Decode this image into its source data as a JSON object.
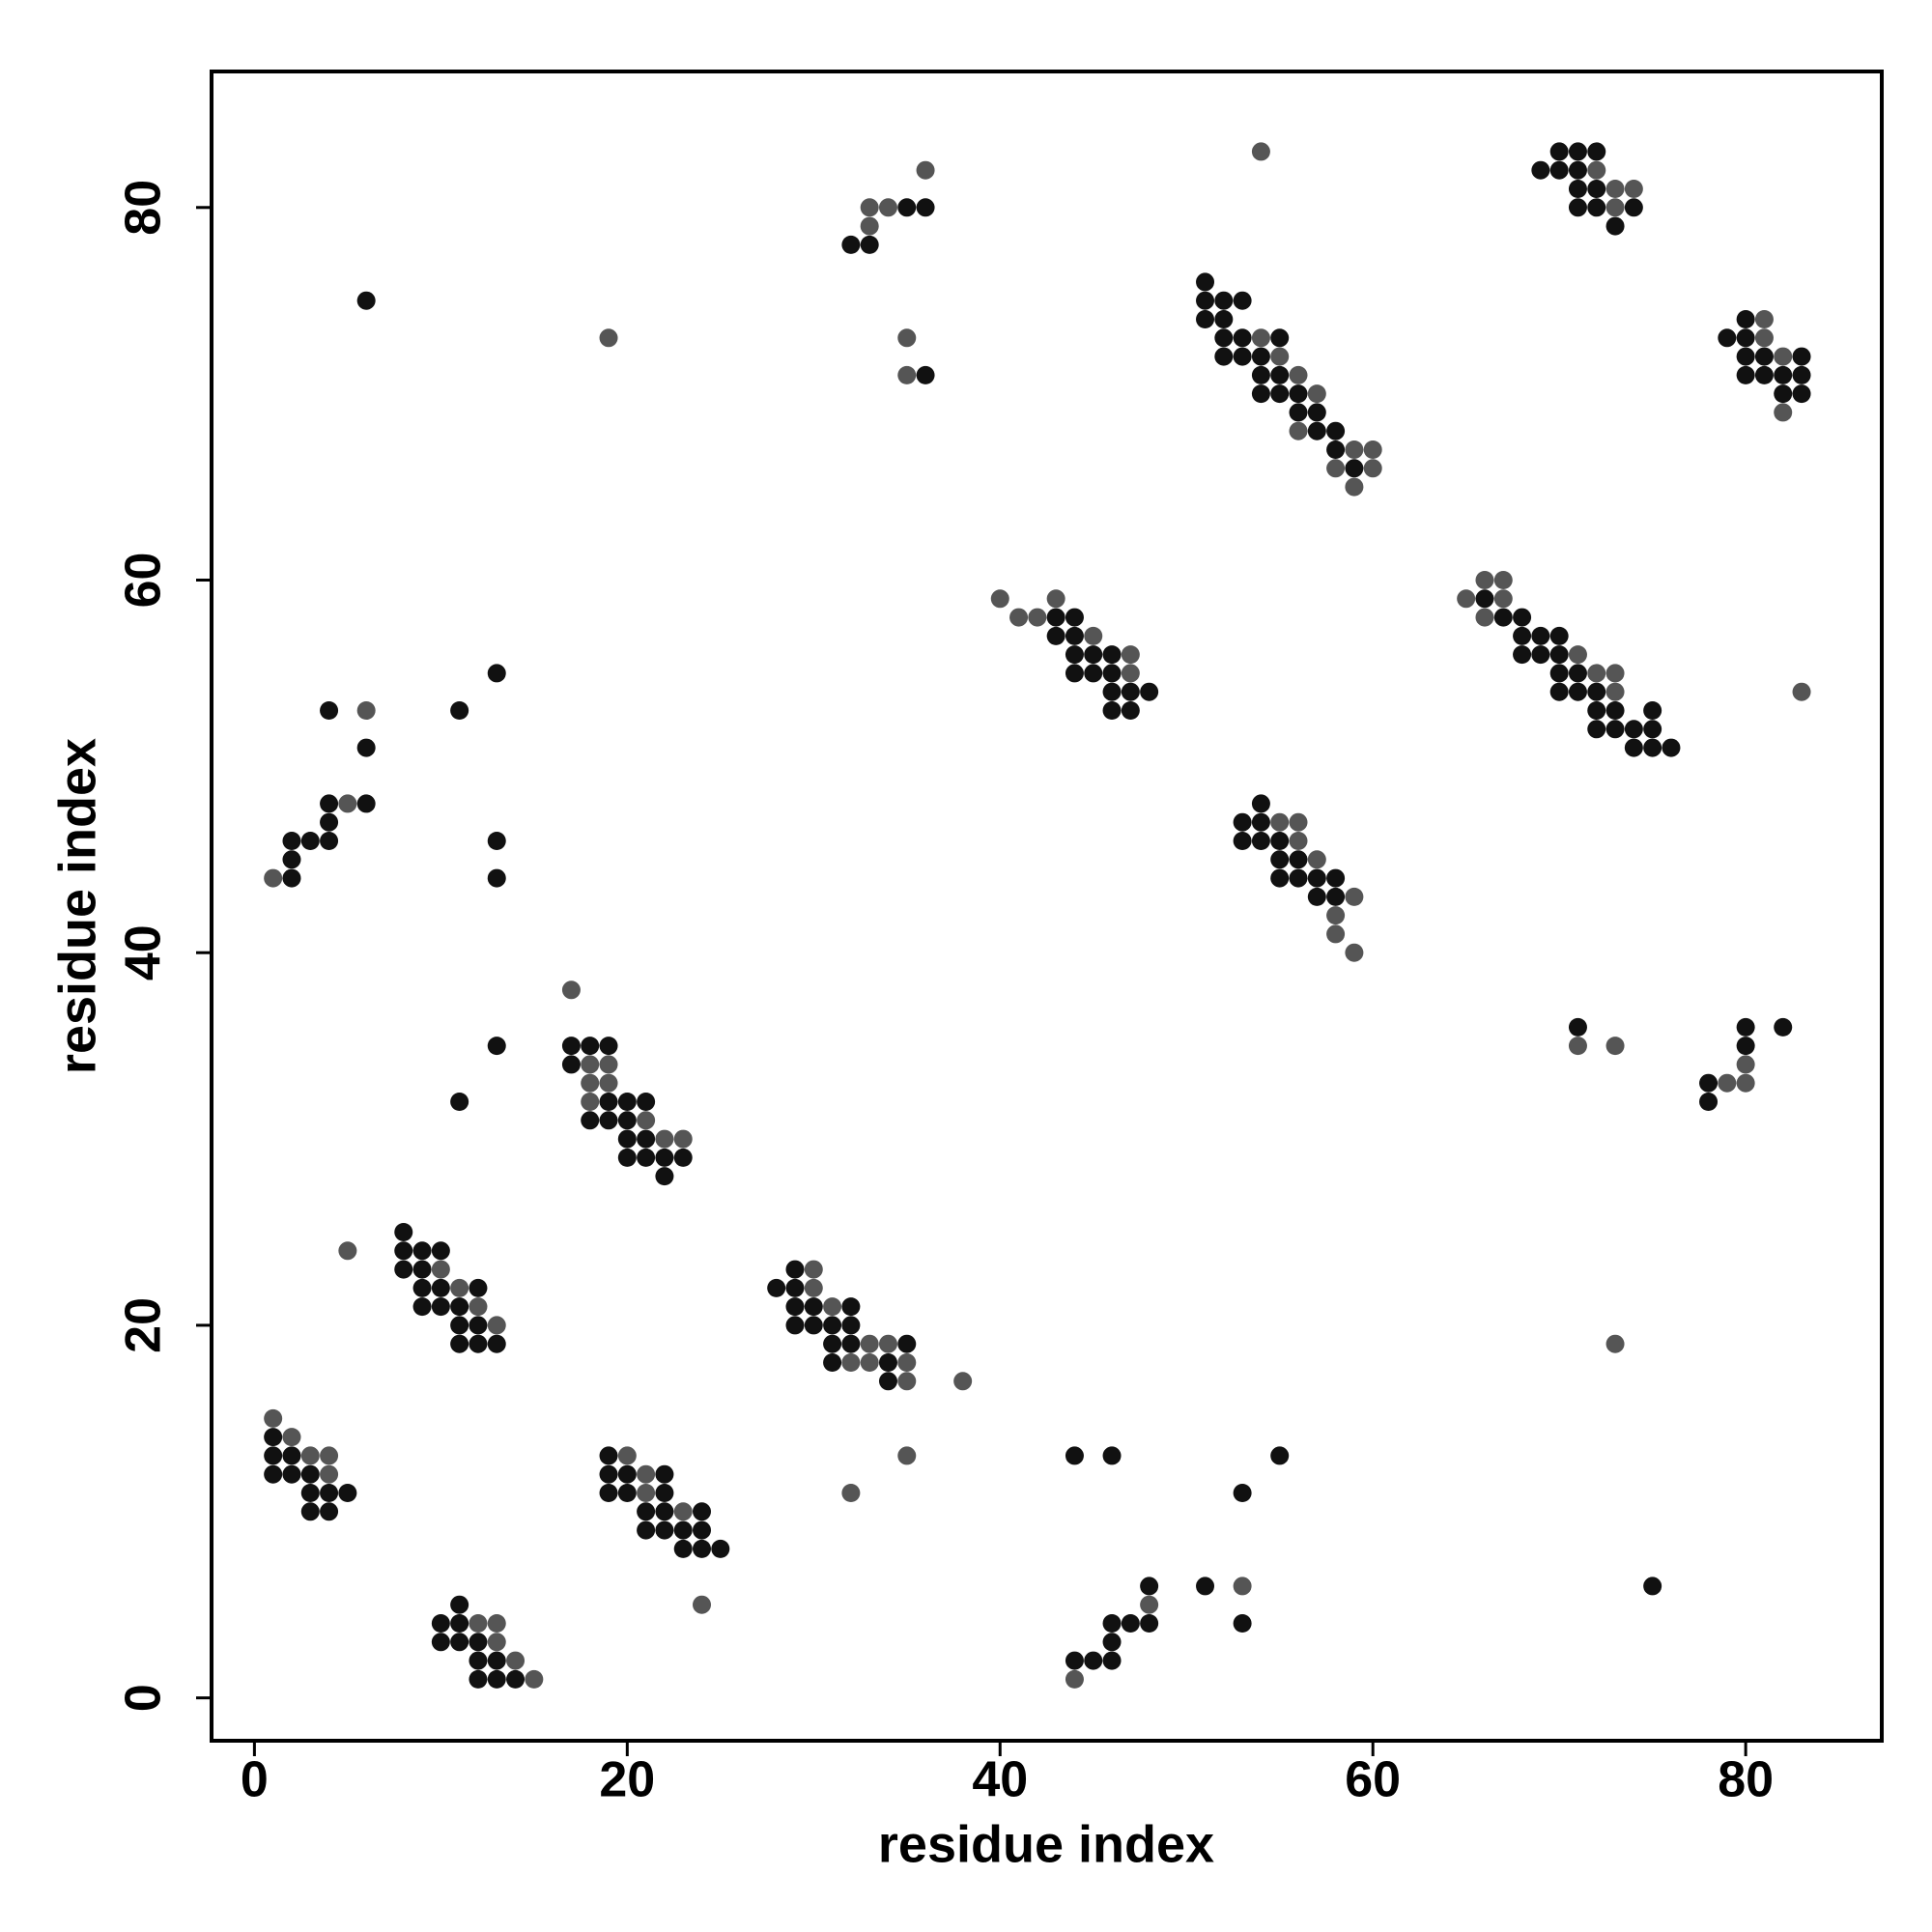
{
  "chart_data": {
    "type": "scatter",
    "x_label": "residue index",
    "y_label": "residue index",
    "xlim": [
      -2.3,
      87.3
    ],
    "ylim": [
      -2.3,
      87.3
    ],
    "xticks": [
      0,
      20,
      40,
      60,
      80
    ],
    "yticks": [
      0,
      20,
      40,
      60,
      80
    ],
    "grid": false,
    "series": [
      {
        "color": "#111111",
        "x": [
          1,
          1,
          2,
          1,
          2,
          3,
          3,
          4,
          5,
          3,
          4,
          8,
          8,
          9,
          10,
          8,
          9,
          9,
          10,
          12,
          9,
          10,
          11,
          11,
          12,
          11,
          12,
          13,
          11,
          10,
          11,
          10,
          11,
          12,
          12,
          13,
          12,
          13,
          14,
          19,
          19,
          20,
          22,
          19,
          20,
          22,
          21,
          22,
          24,
          21,
          22,
          23,
          24,
          23,
          24,
          25,
          17,
          18,
          19,
          17,
          19,
          20,
          21,
          18,
          19,
          20,
          20,
          21,
          20,
          21,
          22,
          23,
          22,
          11,
          13,
          13,
          13,
          13,
          11,
          2,
          2,
          2,
          3,
          4,
          4,
          4,
          6,
          6,
          4,
          6,
          29,
          28,
          29,
          29,
          30,
          32,
          29,
          30,
          31,
          32,
          31,
          32,
          35,
          31,
          34,
          34,
          32,
          33,
          35,
          36,
          36,
          43,
          44,
          43,
          44,
          44,
          45,
          46,
          44,
          45,
          46,
          46,
          47,
          48,
          46,
          47,
          44,
          45,
          46,
          46,
          46,
          47,
          48,
          48,
          44,
          46,
          51,
          53,
          53,
          55,
          51,
          51,
          52,
          53,
          51,
          52,
          52,
          53,
          55,
          52,
          53,
          54,
          54,
          55,
          54,
          55,
          56,
          56,
          57,
          57,
          58,
          58,
          59,
          54,
          53,
          54,
          53,
          54,
          55,
          55,
          56,
          55,
          56,
          57,
          58,
          57,
          58,
          66,
          67,
          68,
          68,
          69,
          70,
          68,
          69,
          70,
          70,
          71,
          70,
          71,
          72,
          72,
          73,
          75,
          72,
          73,
          74,
          75,
          74,
          75,
          76,
          70,
          71,
          72,
          69,
          70,
          71,
          71,
          72,
          71,
          72,
          74,
          73,
          79,
          80,
          80,
          80,
          81,
          83,
          80,
          81,
          82,
          83,
          82,
          83,
          71,
          75,
          78,
          78,
          80,
          80,
          82
        ],
        "y": [
          14,
          13,
          13,
          12,
          12,
          12,
          11,
          11,
          11,
          10,
          10,
          25,
          24,
          24,
          24,
          23,
          23,
          22,
          22,
          22,
          21,
          21,
          21,
          20,
          20,
          19,
          19,
          19,
          5,
          4,
          4,
          3,
          3,
          3,
          2,
          2,
          1,
          1,
          1,
          13,
          12,
          12,
          12,
          11,
          11,
          11,
          10,
          10,
          10,
          9,
          9,
          9,
          9,
          8,
          8,
          8,
          35,
          35,
          35,
          34,
          32,
          32,
          32,
          31,
          31,
          31,
          30,
          30,
          29,
          29,
          29,
          29,
          28,
          32,
          35,
          46,
          44,
          55,
          53,
          44,
          45,
          46,
          46,
          46,
          47,
          48,
          48,
          51,
          53,
          75,
          23,
          22,
          22,
          21,
          21,
          21,
          20,
          20,
          20,
          20,
          19,
          19,
          19,
          18,
          18,
          17,
          78,
          78,
          80,
          80,
          71,
          58,
          58,
          57,
          57,
          56,
          56,
          56,
          55,
          55,
          55,
          54,
          54,
          54,
          53,
          53,
          2,
          2,
          2,
          3,
          4,
          4,
          4,
          6,
          13,
          13,
          6,
          4,
          11,
          13,
          76,
          75,
          75,
          75,
          74,
          74,
          73,
          73,
          73,
          72,
          72,
          72,
          71,
          71,
          70,
          70,
          70,
          69,
          69,
          68,
          68,
          67,
          66,
          48,
          47,
          47,
          46,
          46,
          46,
          45,
          45,
          44,
          44,
          44,
          44,
          43,
          43,
          59,
          58,
          58,
          57,
          57,
          57,
          56,
          56,
          56,
          55,
          55,
          54,
          54,
          54,
          53,
          53,
          53,
          52,
          52,
          52,
          52,
          51,
          51,
          51,
          83,
          83,
          83,
          82,
          82,
          82,
          81,
          81,
          80,
          80,
          80,
          79,
          73,
          74,
          73,
          72,
          72,
          72,
          71,
          71,
          71,
          71,
          70,
          70,
          36,
          6,
          33,
          32,
          35,
          36,
          36
        ]
      },
      {
        "color": "#555555",
        "x": [
          1,
          2,
          3,
          4,
          4,
          5,
          10,
          11,
          12,
          13,
          12,
          13,
          13,
          14,
          15,
          20,
          21,
          21,
          23,
          24,
          17,
          18,
          19,
          18,
          19,
          18,
          21,
          22,
          23,
          1,
          5,
          6,
          19,
          30,
          30,
          31,
          33,
          34,
          32,
          33,
          35,
          35,
          38,
          35,
          32,
          33,
          33,
          34,
          36,
          35,
          35,
          40,
          41,
          42,
          43,
          45,
          47,
          47,
          44,
          48,
          53,
          54,
          55,
          56,
          57,
          56,
          59,
          60,
          58,
          60,
          59,
          54,
          55,
          56,
          56,
          57,
          59,
          58,
          58,
          59,
          65,
          67,
          66,
          67,
          66,
          71,
          72,
          73,
          73,
          83,
          72,
          73,
          74,
          73,
          81,
          81,
          82,
          82,
          71,
          73,
          73,
          79,
          80,
          80
        ],
        "y": [
          15,
          14,
          13,
          13,
          12,
          24,
          23,
          22,
          21,
          20,
          4,
          4,
          3,
          2,
          1,
          13,
          12,
          11,
          10,
          5,
          38,
          34,
          34,
          33,
          33,
          32,
          31,
          30,
          30,
          44,
          48,
          53,
          73,
          23,
          22,
          21,
          19,
          19,
          18,
          18,
          18,
          17,
          17,
          13,
          11,
          79,
          80,
          80,
          82,
          73,
          71,
          59,
          58,
          58,
          59,
          57,
          56,
          55,
          1,
          5,
          6,
          73,
          72,
          71,
          70,
          68,
          67,
          67,
          66,
          66,
          65,
          83,
          47,
          47,
          46,
          45,
          43,
          42,
          41,
          40,
          59,
          59,
          60,
          60,
          58,
          56,
          55,
          55,
          54,
          54,
          82,
          81,
          81,
          80,
          74,
          73,
          72,
          69,
          35,
          35,
          19,
          33,
          33,
          34
        ]
      }
    ]
  }
}
